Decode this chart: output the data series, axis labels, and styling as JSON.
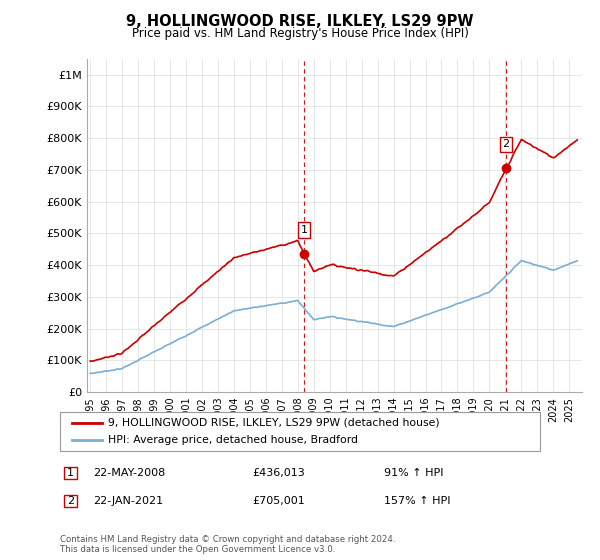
{
  "title": "9, HOLLINGWOOD RISE, ILKLEY, LS29 9PW",
  "subtitle": "Price paid vs. HM Land Registry's House Price Index (HPI)",
  "legend_line1": "9, HOLLINGWOOD RISE, ILKLEY, LS29 9PW (detached house)",
  "legend_line2": "HPI: Average price, detached house, Bradford",
  "annotation1_label": "1",
  "annotation1_date": "22-MAY-2008",
  "annotation1_price": "£436,013",
  "annotation1_hpi": "91% ↑ HPI",
  "annotation2_label": "2",
  "annotation2_date": "22-JAN-2021",
  "annotation2_price": "£705,001",
  "annotation2_hpi": "157% ↑ HPI",
  "footer": "Contains HM Land Registry data © Crown copyright and database right 2024.\nThis data is licensed under the Open Government Licence v3.0.",
  "property_color": "#cc0000",
  "hpi_color": "#7aaed6",
  "vline_color": "#cc0000",
  "background_color": "#ffffff",
  "grid_color": "#dddddd",
  "ylim": [
    0,
    1050000
  ],
  "yticks": [
    0,
    100000,
    200000,
    300000,
    400000,
    500000,
    600000,
    700000,
    800000,
    900000,
    1000000
  ],
  "ytick_labels": [
    "£0",
    "£100K",
    "£200K",
    "£300K",
    "£400K",
    "£500K",
    "£600K",
    "£700K",
    "£800K",
    "£900K",
    "£1M"
  ],
  "sale1_x": 2008.38,
  "sale1_y": 436013,
  "sale2_x": 2021.05,
  "sale2_y": 705001,
  "xmin": 1994.8,
  "xmax": 2025.8
}
